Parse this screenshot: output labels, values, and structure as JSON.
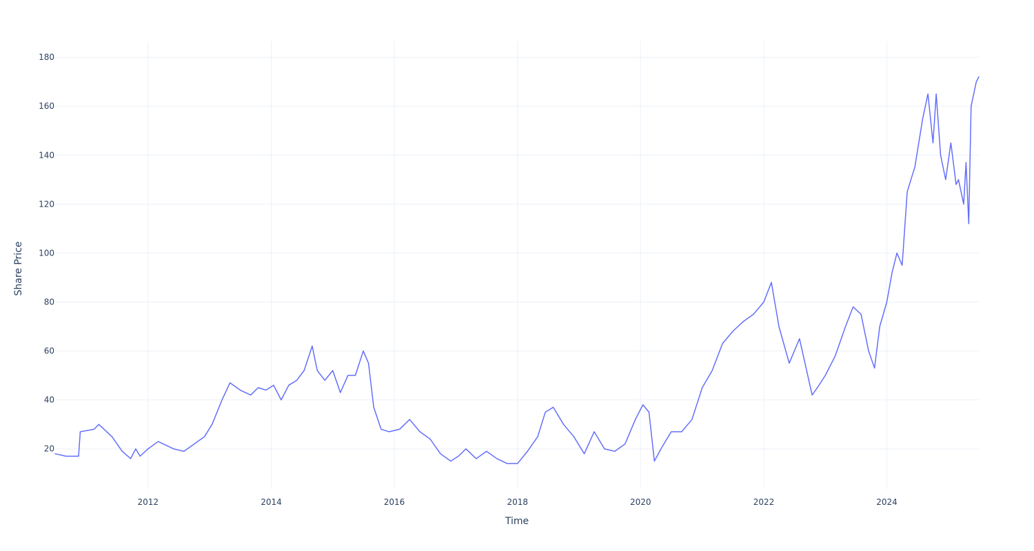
{
  "chart_data": {
    "type": "line",
    "title": "",
    "xlabel": "Time",
    "ylabel": "Share Price",
    "x_axis_type": "date",
    "xlim": [
      "2010-06-29",
      "2025-06-30"
    ],
    "ylim": [
      3.6,
      186.5
    ],
    "x_ticks": [
      "2012",
      "2014",
      "2016",
      "2018",
      "2020",
      "2022",
      "2024"
    ],
    "y_ticks": [
      20,
      40,
      60,
      80,
      100,
      120,
      140,
      160,
      180
    ],
    "grid": true,
    "legend": "none",
    "colors": {
      "line": "#636efa",
      "grid": "#ebf0f8",
      "text": "#2a3f5f",
      "background": "#ffffff"
    },
    "series": [
      {
        "x": [
          "2010-06-29",
          "2010-09-01",
          "2010-11-15",
          "2010-11-25",
          "2011-02-15",
          "2011-03-15",
          "2011-06-01",
          "2011-08-01",
          "2011-09-20",
          "2011-10-20",
          "2011-11-15",
          "2012-01-01",
          "2012-03-01",
          "2012-06-01",
          "2012-08-01",
          "2012-10-01",
          "2012-12-01",
          "2013-01-15",
          "2013-03-15",
          "2013-05-01",
          "2013-07-01",
          "2013-09-01",
          "2013-10-15",
          "2013-12-01",
          "2014-01-15",
          "2014-03-01",
          "2014-04-15",
          "2014-06-01",
          "2014-07-15",
          "2014-09-01",
          "2014-10-01",
          "2014-11-15",
          "2015-01-01",
          "2015-02-15",
          "2015-04-01",
          "2015-05-15",
          "2015-07-01",
          "2015-08-01",
          "2015-09-01",
          "2015-10-15",
          "2015-12-01",
          "2016-02-01",
          "2016-04-01",
          "2016-06-01",
          "2016-08-01",
          "2016-10-01",
          "2016-12-01",
          "2017-01-15",
          "2017-03-01",
          "2017-05-01",
          "2017-07-01",
          "2017-09-01",
          "2017-11-01",
          "2018-01-01",
          "2018-03-01",
          "2018-05-01",
          "2018-06-15",
          "2018-08-01",
          "2018-10-01",
          "2018-12-01",
          "2019-02-01",
          "2019-04-01",
          "2019-06-01",
          "2019-08-01",
          "2019-10-01",
          "2019-12-01",
          "2020-01-15",
          "2020-02-20",
          "2020-03-23",
          "2020-05-01",
          "2020-07-01",
          "2020-09-01",
          "2020-11-01",
          "2021-01-01",
          "2021-03-01",
          "2021-05-01",
          "2021-07-01",
          "2021-09-01",
          "2021-11-01",
          "2022-01-01",
          "2022-02-15",
          "2022-04-01",
          "2022-06-01",
          "2022-08-01",
          "2022-10-15",
          "2022-11-15",
          "2023-01-01",
          "2023-03-01",
          "2023-05-01",
          "2023-06-15",
          "2023-08-01",
          "2023-09-15",
          "2023-10-20",
          "2023-11-20",
          "2024-01-01",
          "2024-02-01",
          "2024-03-01",
          "2024-04-01",
          "2024-05-01",
          "2024-06-01",
          "2024-06-15",
          "2024-08-01",
          "2024-09-01",
          "2024-10-01",
          "2024-10-20",
          "2024-11-15",
          "2024-12-15",
          "2025-01-15",
          "2025-02-15",
          "2025-03-01",
          "2025-04-01",
          "2025-04-15",
          "2025-05-01",
          "2025-05-15",
          "2025-06-15",
          "2025-06-30"
        ],
        "y": [
          18,
          17,
          17,
          27,
          28,
          30,
          25,
          19,
          16,
          20,
          17,
          20,
          23,
          20,
          19,
          22,
          25,
          30,
          40,
          47,
          44,
          42,
          45,
          44,
          46,
          40,
          46,
          48,
          52,
          62,
          52,
          48,
          52,
          43,
          50,
          50,
          60,
          55,
          37,
          28,
          27,
          28,
          32,
          27,
          24,
          18,
          15,
          17,
          20,
          16,
          19,
          16,
          14,
          14,
          19,
          25,
          35,
          37,
          30,
          25,
          18,
          27,
          20,
          19,
          22,
          32,
          38,
          35,
          15,
          20,
          27,
          27,
          32,
          45,
          52,
          63,
          68,
          72,
          75,
          80,
          88,
          70,
          55,
          65,
          42,
          45,
          50,
          58,
          70,
          78,
          75,
          60,
          53,
          70,
          80,
          92,
          100,
          95,
          125,
          132,
          135,
          155,
          165,
          145,
          165,
          140,
          130,
          145,
          128,
          130,
          120,
          137,
          112,
          160,
          170,
          172
        ]
      }
    ]
  }
}
